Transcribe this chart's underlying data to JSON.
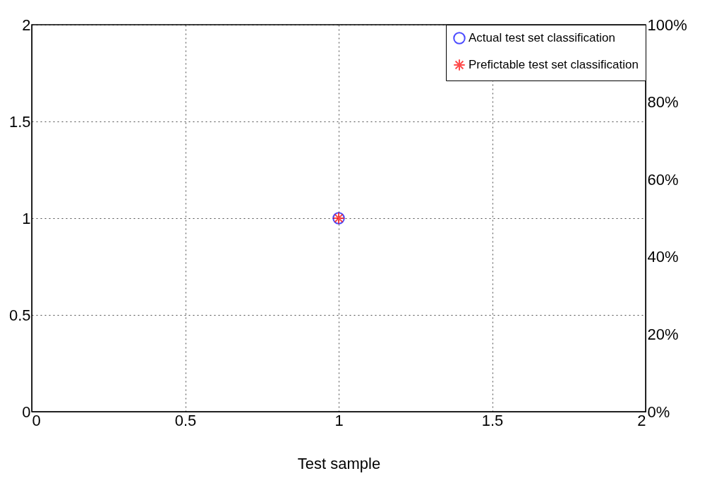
{
  "chart_data": {
    "type": "scatter",
    "xlabel": "Test sample",
    "x": [
      1
    ],
    "series": [
      {
        "name": "Actual test set classification",
        "color": "#0000ff",
        "values": [
          1
        ],
        "marker": "circle"
      },
      {
        "name": "Prefictable test set classification",
        "color": "#ff0000",
        "values": [
          1
        ],
        "marker": "cross"
      }
    ],
    "xlim": [
      0,
      2
    ],
    "xticks": [
      0,
      0.5,
      1,
      1.5,
      2
    ],
    "ylim": [
      0,
      2
    ],
    "yticks": [
      0,
      0.5,
      1,
      1.5,
      2
    ],
    "y2lim": [
      0,
      100
    ],
    "y2ticks": [
      {
        "value": 0,
        "label": "0%"
      },
      {
        "value": 20,
        "label": "20%"
      },
      {
        "value": 40,
        "label": "40%"
      },
      {
        "value": 60,
        "label": "60%"
      },
      {
        "value": 80,
        "label": "80%"
      },
      {
        "value": 100,
        "label": "100%"
      }
    ],
    "grid": true,
    "legend": "top right"
  }
}
